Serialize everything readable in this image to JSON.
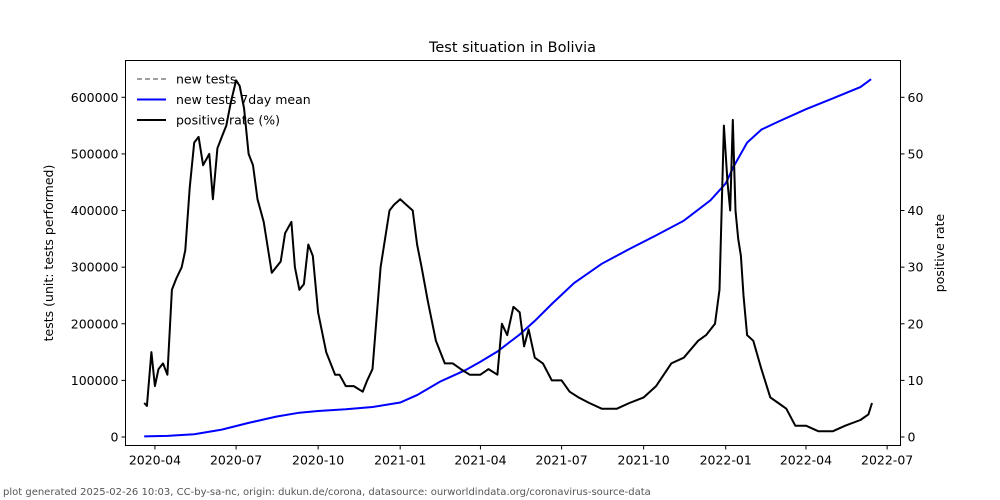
{
  "chart_data": {
    "type": "line",
    "title": "Test situation in Bolivia",
    "ylabel": "tests (unit: tests performed)",
    "ylabel_right": "positive rate",
    "ylim": [
      -15000,
      665000
    ],
    "ylim_right": [
      -1.5,
      66.5
    ],
    "yticks": [
      0,
      100000,
      200000,
      300000,
      400000,
      500000,
      600000
    ],
    "yticks_right": [
      0,
      10,
      20,
      30,
      40,
      50,
      60
    ],
    "xticks": [
      "2020-04",
      "2020-07",
      "2020-10",
      "2021-01",
      "2021-04",
      "2021-07",
      "2021-10",
      "2022-01",
      "2022-04",
      "2022-07"
    ],
    "xlim": [
      "2020-02-28",
      "2022-07-16"
    ],
    "grid": false,
    "legend_position": "top-left",
    "legend": [
      {
        "label": "new tests",
        "color": "#808080",
        "style": "dashed"
      },
      {
        "label": "new tests 7day mean",
        "color": "#0000ff",
        "style": "solid"
      },
      {
        "label": "positive rate (%)",
        "color": "#000000",
        "style": "solid"
      }
    ],
    "series": [
      {
        "name": "new tests 7day mean",
        "axis": "left",
        "color": "#0000ff",
        "x": [
          "2020-03-20",
          "2020-04-15",
          "2020-05-15",
          "2020-06-15",
          "2020-07-15",
          "2020-08-15",
          "2020-09-10",
          "2020-10-01",
          "2020-11-01",
          "2020-12-01",
          "2021-01-01",
          "2021-01-20",
          "2021-02-15",
          "2021-03-15",
          "2021-04-01",
          "2021-04-20",
          "2021-05-15",
          "2021-06-01",
          "2021-06-20",
          "2021-07-15",
          "2021-08-15",
          "2021-09-15",
          "2021-10-15",
          "2021-11-15",
          "2021-12-15",
          "2022-01-01",
          "2022-01-10",
          "2022-01-25",
          "2022-02-10",
          "2022-03-01",
          "2022-04-01",
          "2022-05-01",
          "2022-06-01",
          "2022-06-13"
        ],
        "values": [
          1000,
          2000,
          5000,
          13000,
          25000,
          36000,
          43000,
          46000,
          49000,
          53000,
          61000,
          74000,
          98000,
          118000,
          133000,
          151000,
          181000,
          205000,
          235000,
          272000,
          306000,
          332000,
          356000,
          382000,
          418000,
          448000,
          478000,
          520000,
          543000,
          557000,
          579000,
          598000,
          618000,
          632000
        ]
      },
      {
        "name": "positive rate (%)",
        "axis": "right",
        "color": "#000000",
        "x": [
          "2020-03-20",
          "2020-03-23",
          "2020-03-28",
          "2020-04-01",
          "2020-04-05",
          "2020-04-10",
          "2020-04-15",
          "2020-04-20",
          "2020-04-25",
          "2020-05-01",
          "2020-05-05",
          "2020-05-10",
          "2020-05-15",
          "2020-05-20",
          "2020-05-25",
          "2020-06-01",
          "2020-06-05",
          "2020-06-10",
          "2020-06-15",
          "2020-06-20",
          "2020-06-25",
          "2020-07-01",
          "2020-07-05",
          "2020-07-10",
          "2020-07-15",
          "2020-07-20",
          "2020-07-25",
          "2020-08-01",
          "2020-08-10",
          "2020-08-20",
          "2020-08-25",
          "2020-09-01",
          "2020-09-05",
          "2020-09-10",
          "2020-09-15",
          "2020-09-20",
          "2020-09-25",
          "2020-10-01",
          "2020-10-10",
          "2020-10-20",
          "2020-10-25",
          "2020-11-01",
          "2020-11-10",
          "2020-11-20",
          "2020-11-25",
          "2020-12-01",
          "2020-12-10",
          "2020-12-20",
          "2020-12-25",
          "2021-01-01",
          "2021-01-08",
          "2021-01-15",
          "2021-01-20",
          "2021-01-25",
          "2021-02-01",
          "2021-02-10",
          "2021-02-20",
          "2021-03-01",
          "2021-03-10",
          "2021-03-20",
          "2021-04-01",
          "2021-04-10",
          "2021-04-20",
          "2021-04-25",
          "2021-05-01",
          "2021-05-08",
          "2021-05-15",
          "2021-05-20",
          "2021-05-25",
          "2021-06-01",
          "2021-06-10",
          "2021-06-20",
          "2021-07-01",
          "2021-07-10",
          "2021-07-20",
          "2021-08-01",
          "2021-08-15",
          "2021-09-01",
          "2021-09-15",
          "2021-10-01",
          "2021-10-15",
          "2021-11-01",
          "2021-11-15",
          "2021-12-01",
          "2021-12-10",
          "2021-12-20",
          "2021-12-25",
          "2021-12-30",
          "2022-01-03",
          "2022-01-06",
          "2022-01-09",
          "2022-01-12",
          "2022-01-15",
          "2022-01-18",
          "2022-01-21",
          "2022-01-25",
          "2022-02-01",
          "2022-02-10",
          "2022-02-20",
          "2022-03-01",
          "2022-03-10",
          "2022-03-20",
          "2022-04-01",
          "2022-04-15",
          "2022-05-01",
          "2022-05-15",
          "2022-06-01",
          "2022-06-10",
          "2022-06-14"
        ],
        "values": [
          6,
          5.5,
          15,
          9,
          12,
          13,
          11,
          26,
          28,
          30,
          33,
          44,
          52,
          53,
          48,
          50,
          42,
          51,
          53,
          55,
          59,
          63,
          62,
          58,
          50,
          48,
          42,
          38,
          29,
          31,
          36,
          38,
          30,
          26,
          27,
          34,
          32,
          22,
          15,
          11,
          11,
          9,
          9,
          8,
          10,
          12,
          30,
          40,
          41,
          42,
          41,
          40,
          34,
          30,
          24,
          17,
          13,
          13,
          12,
          11,
          11,
          12,
          11,
          20,
          18,
          23,
          22,
          16,
          19,
          14,
          13,
          10,
          10,
          8,
          7,
          6,
          5,
          5,
          6,
          7,
          9,
          13,
          14,
          17,
          18,
          20,
          26,
          55,
          45,
          40,
          56,
          40,
          35,
          32,
          25,
          18,
          17,
          12,
          7,
          6,
          5,
          2,
          2,
          1,
          1,
          2,
          3,
          4,
          6
        ]
      }
    ]
  },
  "footer": "plot generated 2025-02-26 10:03, CC-by-sa-nc, origin: dukun.de/corona, datasource: ourworldindata.org/coronavirus-source-data"
}
